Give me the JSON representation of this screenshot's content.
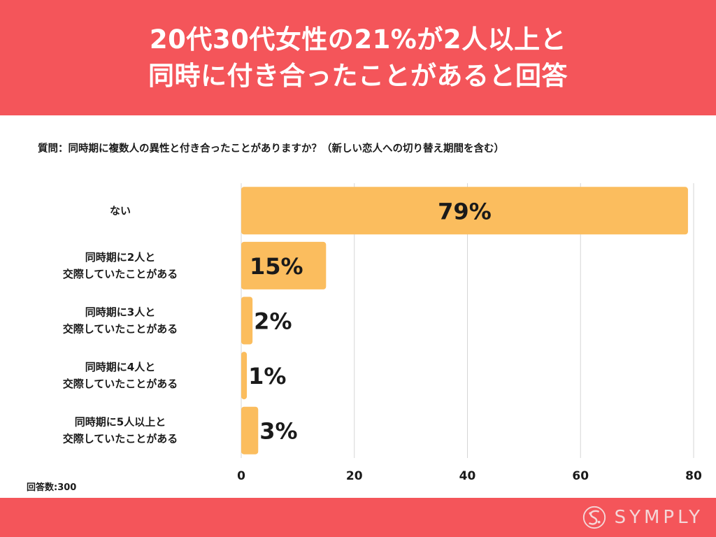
{
  "header": {
    "line1": "20代30代女性の21%が2人以上と",
    "line2": "同時に付き合ったことがあると回答"
  },
  "question": "質問：同時期に複数人の異性と付き合ったことがありますか？（新しい恋人への切り替え期間を含む）",
  "respondents": "回答数:300",
  "logo": {
    "text": "SYMPLY"
  },
  "colors": {
    "header_bg": "#f4555a",
    "bar": "#fbbd5e",
    "grid": "#d5d5d5"
  },
  "chart_data": {
    "type": "bar",
    "orientation": "horizontal",
    "categories": [
      [
        "ない"
      ],
      [
        "同時期に2人と",
        "交際していたことがある"
      ],
      [
        "同時期に3人と",
        "交際していたことがある"
      ],
      [
        "同時期に4人と",
        "交際していたことがある"
      ],
      [
        "同時期に5人以上と",
        "交際していたことがある"
      ]
    ],
    "values": [
      79,
      15,
      2,
      1,
      3
    ],
    "data_labels": [
      "79%",
      "15%",
      "2%",
      "1%",
      "3%"
    ],
    "xlim": [
      0,
      80
    ],
    "xticks": [
      0,
      20,
      40,
      60,
      80
    ],
    "grid": true,
    "title": "",
    "xlabel": "",
    "ylabel": ""
  }
}
